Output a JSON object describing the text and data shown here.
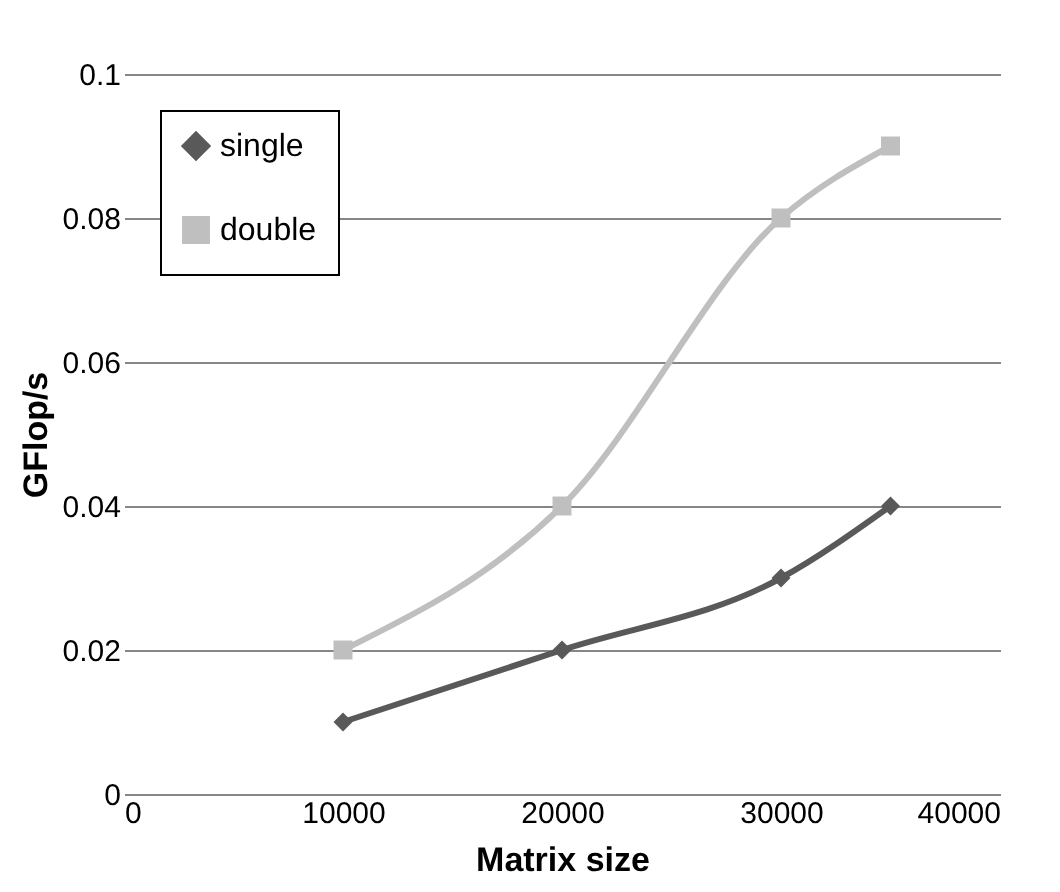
{
  "chart_data": {
    "type": "line",
    "xlabel": "Matrix size",
    "ylabel": "GFlop/s",
    "x": [
      10000,
      20000,
      30000,
      35000
    ],
    "series": [
      {
        "name": "single",
        "color": "#595959",
        "marker": "diamond",
        "values": [
          0.01,
          0.02,
          0.03,
          0.04
        ]
      },
      {
        "name": "double",
        "color": "#bfbfbf",
        "marker": "square",
        "values": [
          0.02,
          0.04,
          0.08,
          0.09
        ]
      }
    ],
    "xlim": [
      0,
      40000
    ],
    "xticks": [
      0,
      10000,
      20000,
      30000,
      40000
    ],
    "ylim": [
      0,
      0.1
    ],
    "yticks": [
      0,
      0.02,
      0.04,
      0.06,
      0.08,
      0.1
    ],
    "grid": "y",
    "legend": "top left"
  }
}
